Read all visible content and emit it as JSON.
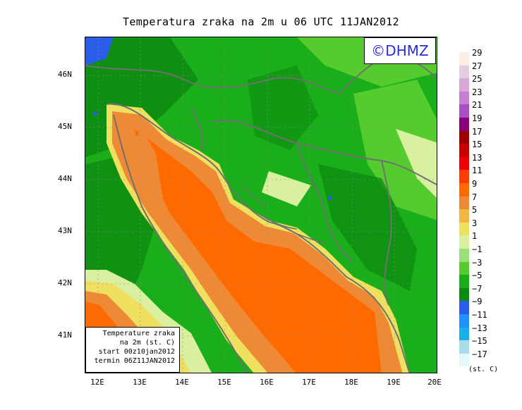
{
  "title": "Temperatura zraka na 2m u 06 UTC 11JAN2012",
  "watermark": "©DHMZ",
  "info_box": {
    "line1": "Temperature zraka",
    "line2": "na 2m (st. C)",
    "line3": "start 00z10jan2012",
    "line4": "termin 06Z11JAN2012"
  },
  "y_ticks": [
    "46N",
    "45N",
    "44N",
    "43N",
    "42N",
    "41N"
  ],
  "x_ticks": [
    "12E",
    "13E",
    "14E",
    "15E",
    "16E",
    "17E",
    "18E",
    "19E",
    "20E"
  ],
  "legend": {
    "unit": "(st. C)",
    "labels": [
      "29",
      "27",
      "25",
      "23",
      "21",
      "19",
      "17",
      "15",
      "13",
      "11",
      "9",
      "7",
      "5",
      "3",
      "1",
      "−1",
      "−3",
      "−5",
      "−7",
      "−9",
      "−11",
      "−13",
      "−15",
      "−17"
    ],
    "colors": [
      "#fbeee4",
      "#e3cde0",
      "#d8a8d6",
      "#c77ed3",
      "#a94fc4",
      "#8a0078",
      "#9c0000",
      "#c80000",
      "#f00000",
      "#ff3c00",
      "#ff6a00",
      "#ee8a35",
      "#f2b740",
      "#f0e060",
      "#d9f0a0",
      "#99e07a",
      "#55cc2e",
      "#1aae1a",
      "#0e8a10",
      "#2a5ee8",
      "#1e90ff",
      "#19b0e8",
      "#a8dce8",
      "#e4f8f8"
    ]
  },
  "map_colors": {
    "sea_warm": "#ff6a00",
    "sea_mid": "#ee8a35",
    "coast": "#f2b740",
    "land_green": "#1aae1a",
    "land_dark": "#0e8a10",
    "land_light": "#55cc2e",
    "cold": "#2a5ee8"
  }
}
